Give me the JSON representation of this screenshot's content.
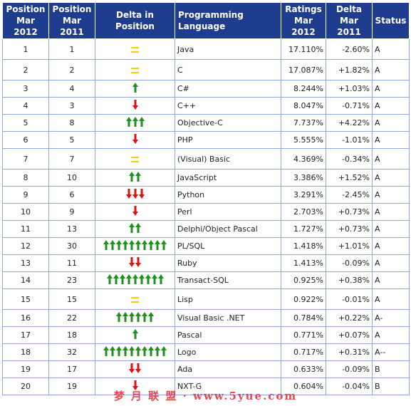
{
  "headers": {
    "pos2012": "Position\nMar 2012",
    "pos2011": "Position\nMar 2011",
    "delta_pos": "Delta in Position",
    "language": "Programming Language",
    "ratings": "Ratings\nMar 2012",
    "delta": "Delta\nMar 2011",
    "status": "Status"
  },
  "colors": {
    "up": "#1f8f1f",
    "down": "#e01010",
    "same": "#ffcc00",
    "header_bg": "#1f3d8e",
    "border": "#93a6d8"
  },
  "rows": [
    {
      "pos2012": "1",
      "pos2011": "1",
      "change": "same",
      "count": 1,
      "language": "Java",
      "rating": "17.110%",
      "delta": "-2.60%",
      "status": "A"
    },
    {
      "pos2012": "2",
      "pos2011": "2",
      "change": "same",
      "count": 1,
      "language": "C",
      "rating": "17.087%",
      "delta": "+1.82%",
      "status": "A"
    },
    {
      "pos2012": "3",
      "pos2011": "4",
      "change": "up",
      "count": 1,
      "language": "C#",
      "rating": "8.244%",
      "delta": "+1.03%",
      "status": "A"
    },
    {
      "pos2012": "4",
      "pos2011": "3",
      "change": "down",
      "count": 1,
      "language": "C++",
      "rating": "8.047%",
      "delta": "-0.71%",
      "status": "A"
    },
    {
      "pos2012": "5",
      "pos2011": "8",
      "change": "up",
      "count": 3,
      "language": "Objective-C",
      "rating": "7.737%",
      "delta": "+4.22%",
      "status": "A"
    },
    {
      "pos2012": "6",
      "pos2011": "5",
      "change": "down",
      "count": 1,
      "language": "PHP",
      "rating": "5.555%",
      "delta": "-1.01%",
      "status": "A"
    },
    {
      "pos2012": "7",
      "pos2011": "7",
      "change": "same",
      "count": 1,
      "language": "(Visual) Basic",
      "rating": "4.369%",
      "delta": "-0.34%",
      "status": "A"
    },
    {
      "pos2012": "8",
      "pos2011": "10",
      "change": "up",
      "count": 2,
      "language": "JavaScript",
      "rating": "3.386%",
      "delta": "+1.52%",
      "status": "A"
    },
    {
      "pos2012": "9",
      "pos2011": "6",
      "change": "down",
      "count": 3,
      "language": "Python",
      "rating": "3.291%",
      "delta": "-2.45%",
      "status": "A"
    },
    {
      "pos2012": "10",
      "pos2011": "9",
      "change": "down",
      "count": 1,
      "language": "Perl",
      "rating": "2.703%",
      "delta": "+0.73%",
      "status": "A"
    },
    {
      "pos2012": "11",
      "pos2011": "13",
      "change": "up",
      "count": 2,
      "language": "Delphi/Object Pascal",
      "rating": "1.727%",
      "delta": "+0.73%",
      "status": "A"
    },
    {
      "pos2012": "12",
      "pos2011": "30",
      "change": "up",
      "count": 10,
      "language": "PL/SQL",
      "rating": "1.418%",
      "delta": "+1.01%",
      "status": "A"
    },
    {
      "pos2012": "13",
      "pos2011": "11",
      "change": "down",
      "count": 2,
      "language": "Ruby",
      "rating": "1.413%",
      "delta": "-0.09%",
      "status": "A"
    },
    {
      "pos2012": "14",
      "pos2011": "23",
      "change": "up",
      "count": 9,
      "language": "Transact-SQL",
      "rating": "0.925%",
      "delta": "+0.38%",
      "status": "A"
    },
    {
      "pos2012": "15",
      "pos2011": "15",
      "change": "same",
      "count": 1,
      "language": "Lisp",
      "rating": "0.922%",
      "delta": "-0.01%",
      "status": "A"
    },
    {
      "pos2012": "16",
      "pos2011": "22",
      "change": "up",
      "count": 6,
      "language": "Visual Basic .NET",
      "rating": "0.784%",
      "delta": "+0.22%",
      "status": "A-"
    },
    {
      "pos2012": "17",
      "pos2011": "18",
      "change": "up",
      "count": 1,
      "language": "Pascal",
      "rating": "0.771%",
      "delta": "+0.07%",
      "status": "A"
    },
    {
      "pos2012": "18",
      "pos2011": "32",
      "change": "up",
      "count": 10,
      "language": "Logo",
      "rating": "0.717%",
      "delta": "+0.31%",
      "status": "A--"
    },
    {
      "pos2012": "19",
      "pos2011": "17",
      "change": "down",
      "count": 2,
      "language": "Ada",
      "rating": "0.633%",
      "delta": "-0.09%",
      "status": "B"
    },
    {
      "pos2012": "20",
      "pos2011": "19",
      "change": "down",
      "count": 1,
      "language": "NXT-G",
      "rating": "0.604%",
      "delta": "-0.04%",
      "status": "B"
    }
  ],
  "watermark": "梦 月 联 盟 · www.5yue.com"
}
